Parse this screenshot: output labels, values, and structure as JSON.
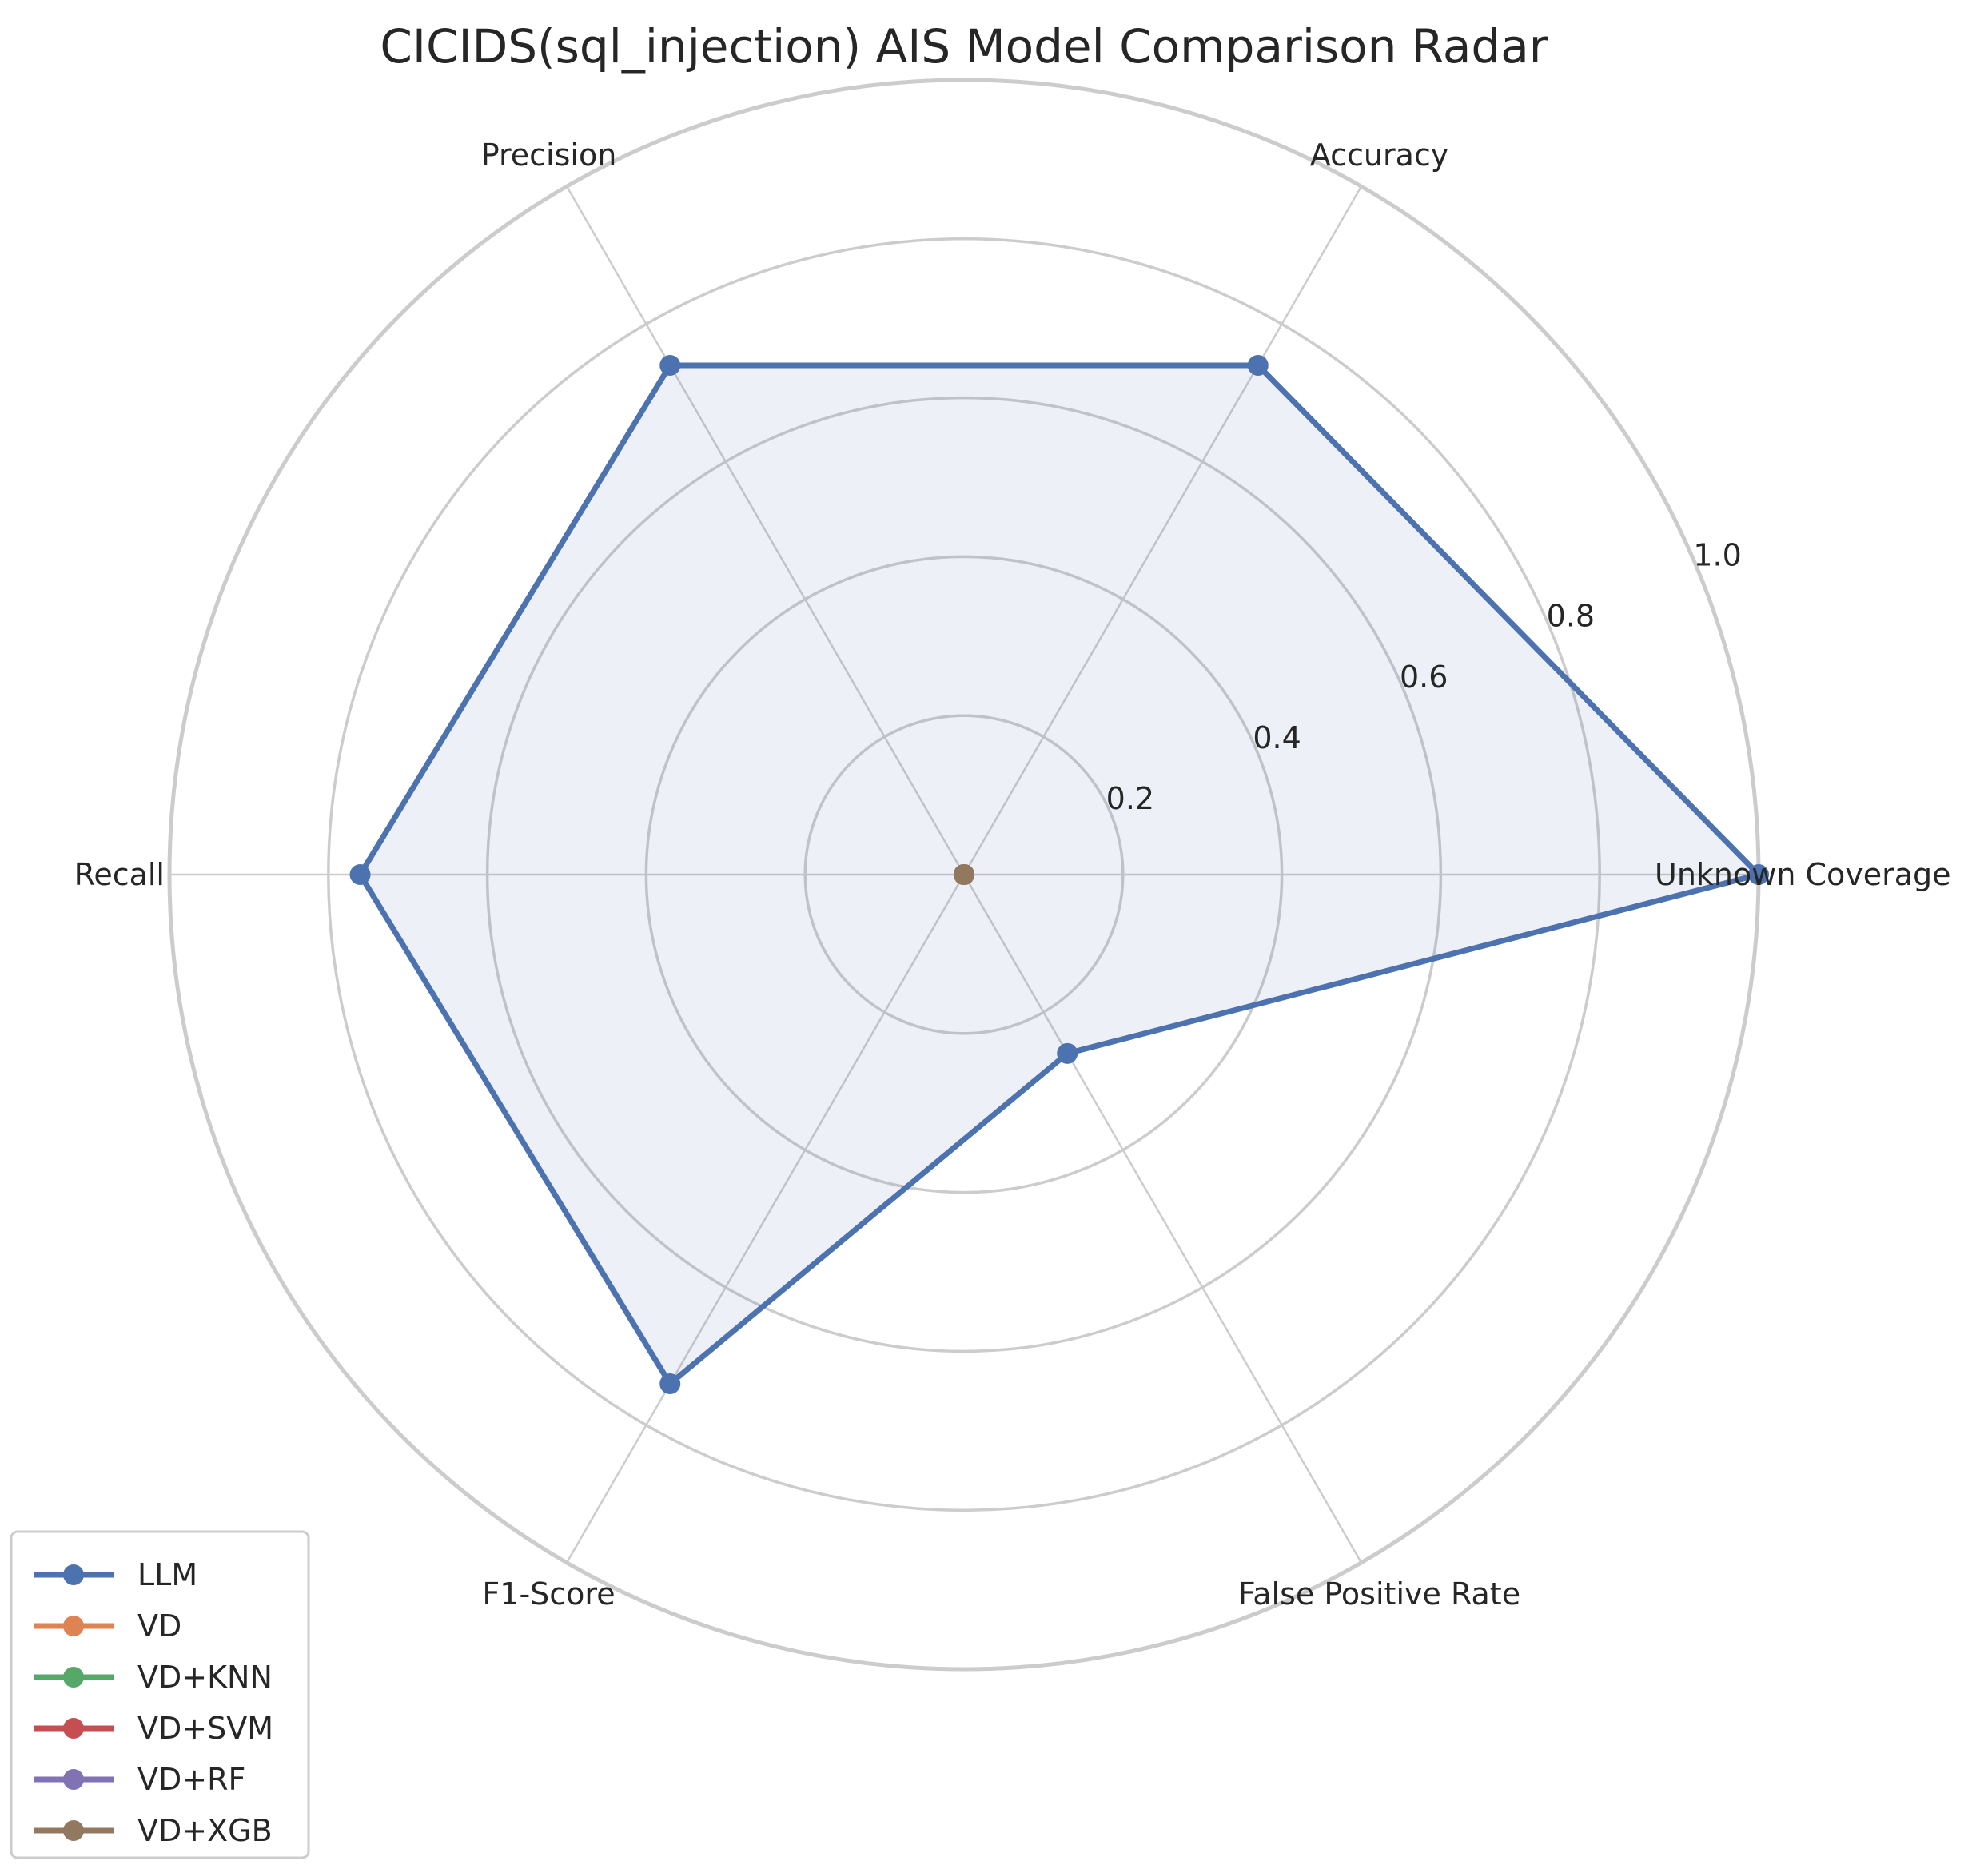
{
  "chart_data": {
    "type": "radar",
    "title": "CICIDS(sql_injection) AIS Model Comparison Radar",
    "axes": [
      "Unknown Coverage",
      "Accuracy",
      "Precision",
      "Recall",
      "F1-Score",
      "False Positive Rate"
    ],
    "rlim": [
      0,
      1.0
    ],
    "rticks": [
      "0.2",
      "0.4",
      "0.6",
      "0.8",
      "1.0"
    ],
    "rtick_values": [
      0.2,
      0.4,
      0.6,
      0.8,
      1.0
    ],
    "grid": true,
    "legend_position": "lower-left",
    "series": [
      {
        "name": "LLM",
        "color": "#4c72b0",
        "values": [
          1.0,
          0.74,
          0.74,
          0.76,
          0.74,
          0.26
        ],
        "filled": true
      },
      {
        "name": "VD",
        "color": "#dd8452",
        "values": [
          0,
          0,
          0,
          0,
          0,
          0
        ]
      },
      {
        "name": "VD+KNN",
        "color": "#55a868",
        "values": [
          0,
          0,
          0,
          0,
          0,
          0
        ]
      },
      {
        "name": "VD+SVM",
        "color": "#c44e52",
        "values": [
          0,
          0,
          0,
          0,
          0,
          0
        ]
      },
      {
        "name": "VD+RF",
        "color": "#8172b3",
        "values": [
          0,
          0,
          0,
          0,
          0,
          0
        ]
      },
      {
        "name": "VD+XGB",
        "color": "#937860",
        "values": [
          0,
          0,
          0,
          0,
          0,
          0
        ]
      }
    ]
  }
}
